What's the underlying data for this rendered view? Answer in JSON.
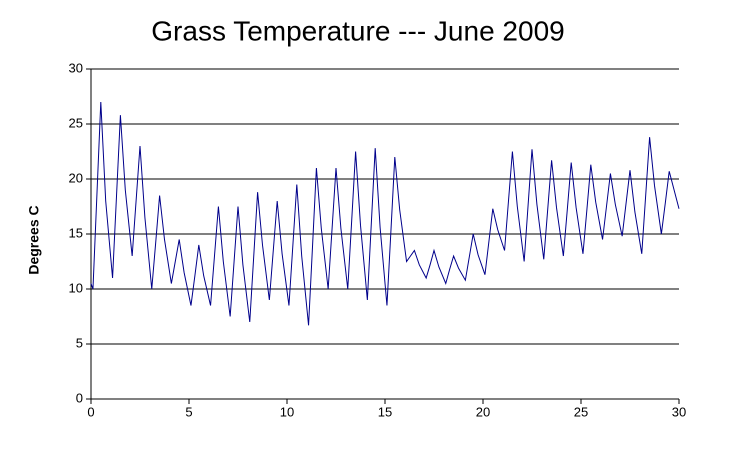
{
  "chart_data": {
    "type": "line",
    "title": "Grass Temperature --- June 2009",
    "y_label": "Degrees C",
    "x": [
      0,
      0.1,
      0.3,
      0.5,
      0.75,
      1.1,
      1.3,
      1.5,
      1.75,
      2.1,
      2.3,
      2.5,
      2.75,
      3.1,
      3.3,
      3.5,
      3.75,
      4.1,
      4.3,
      4.5,
      4.75,
      5.1,
      5.3,
      5.5,
      5.75,
      6.1,
      6.3,
      6.5,
      6.75,
      7.1,
      7.3,
      7.5,
      7.75,
      8.1,
      8.3,
      8.5,
      8.75,
      9.1,
      9.3,
      9.5,
      9.75,
      10.1,
      10.3,
      10.5,
      10.75,
      11.1,
      11.3,
      11.5,
      11.75,
      12.1,
      12.3,
      12.5,
      12.75,
      13.1,
      13.3,
      13.5,
      13.75,
      14.1,
      14.3,
      14.5,
      14.75,
      15.1,
      15.3,
      15.5,
      15.75,
      16.1,
      16.3,
      16.5,
      16.75,
      17.1,
      17.3,
      17.5,
      17.75,
      18.1,
      18.3,
      18.5,
      18.75,
      19.1,
      19.3,
      19.5,
      19.75,
      20.1,
      20.3,
      20.5,
      20.75,
      21.1,
      21.3,
      21.5,
      21.75,
      22.1,
      22.3,
      22.5,
      22.75,
      23.1,
      23.3,
      23.5,
      23.75,
      24.1,
      24.3,
      24.5,
      24.75,
      25.1,
      25.3,
      25.5,
      25.75,
      26.1,
      26.3,
      26.5,
      26.75,
      27.1,
      27.3,
      27.5,
      27.75,
      28.1,
      28.3,
      28.5,
      28.75,
      29.1,
      29.3,
      29.5,
      29.75,
      30
    ],
    "values": [
      10.5,
      10,
      18.5,
      27,
      18,
      11,
      18.4,
      25.8,
      19,
      13,
      18,
      23,
      16.5,
      10,
      14.2,
      18.5,
      14.5,
      10.5,
      12.5,
      14.5,
      11.5,
      8.5,
      11.2,
      14,
      11.2,
      8.5,
      13,
      17.5,
      12.5,
      7.5,
      12.5,
      17.5,
      12.2,
      7,
      12.9,
      18.8,
      14,
      9,
      13.5,
      18,
      13.2,
      8.5,
      14,
      19.5,
      13,
      6.7,
      13.8,
      21,
      15.5,
      10,
      15.5,
      21,
      15.5,
      10,
      16.2,
      22.5,
      15.8,
      9,
      15.9,
      22.8,
      15.6,
      8.5,
      15.2,
      22,
      17.2,
      12.5,
      13,
      13.5,
      12.2,
      11,
      12.2,
      13.5,
      12,
      10.5,
      11.8,
      13,
      11.9,
      10.8,
      12.9,
      15,
      13.1,
      11.3,
      14.3,
      17.3,
      15.4,
      13.5,
      18,
      22.5,
      17.5,
      12.5,
      17.6,
      22.7,
      17.7,
      12.7,
      17.2,
      21.7,
      17.4,
      13,
      17.2,
      21.5,
      17.4,
      13.2,
      17.2,
      21.3,
      17.9,
      14.5,
      17.5,
      20.5,
      17.7,
      14.8,
      17.8,
      20.8,
      17,
      13.2,
      18.5,
      23.8,
      19.4,
      15,
      17.8,
      20.7,
      19,
      17.3
    ],
    "color": "#00008b",
    "xlim": [
      0,
      30
    ],
    "xticks": [
      0,
      5,
      10,
      15,
      20,
      25,
      30
    ],
    "ylim": [
      0,
      30
    ],
    "yticks": [
      0,
      5,
      10,
      15,
      20,
      25,
      30
    ],
    "grid": true
  }
}
